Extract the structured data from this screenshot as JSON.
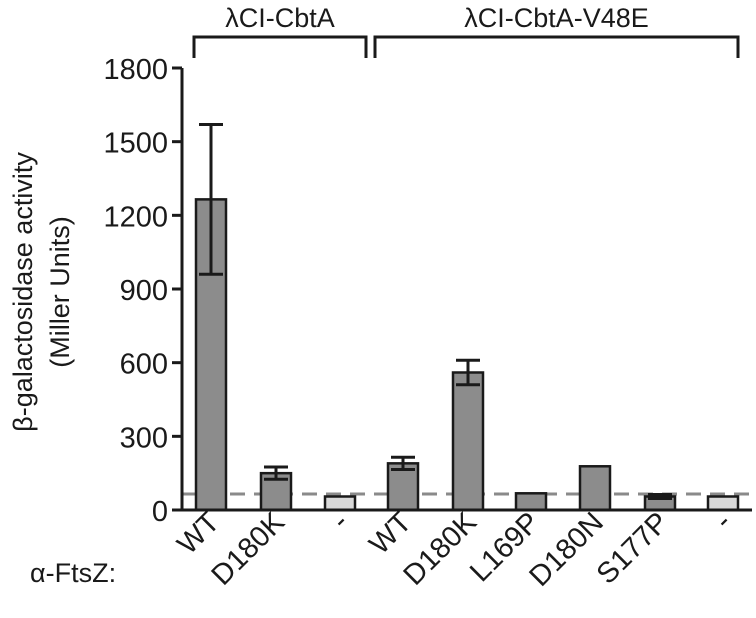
{
  "chart_data": {
    "type": "bar",
    "ylabel_line1": "β-galactosidase activity",
    "ylabel_line2": "(Miller Units)",
    "xaxis_prefix": "α-FtsZ:",
    "ylim": [
      0,
      1800
    ],
    "yticks": [
      "0",
      "300",
      "600",
      "900",
      "1200",
      "1500",
      "1800"
    ],
    "threshold": 65,
    "groups": [
      {
        "label": "λCI-CbtA",
        "start": 0,
        "end": 2
      },
      {
        "label": "λCI-CbtA-V48E",
        "start": 3,
        "end": 8
      }
    ],
    "categories": [
      "WT",
      "D180K",
      "-",
      "WT",
      "D180K",
      "L169P",
      "D180N",
      "S177P",
      "-"
    ],
    "values": [
      1265,
      150,
      55,
      190,
      560,
      68,
      178,
      55,
      55
    ],
    "errors": [
      305,
      25,
      0,
      25,
      50,
      0,
      0,
      8,
      0
    ],
    "colors": [
      "#8c8c8c",
      "#8c8c8c",
      "#d9d9d9",
      "#8c8c8c",
      "#8c8c8c",
      "#8c8c8c",
      "#8c8c8c",
      "#8c8c8c",
      "#d9d9d9"
    ]
  }
}
